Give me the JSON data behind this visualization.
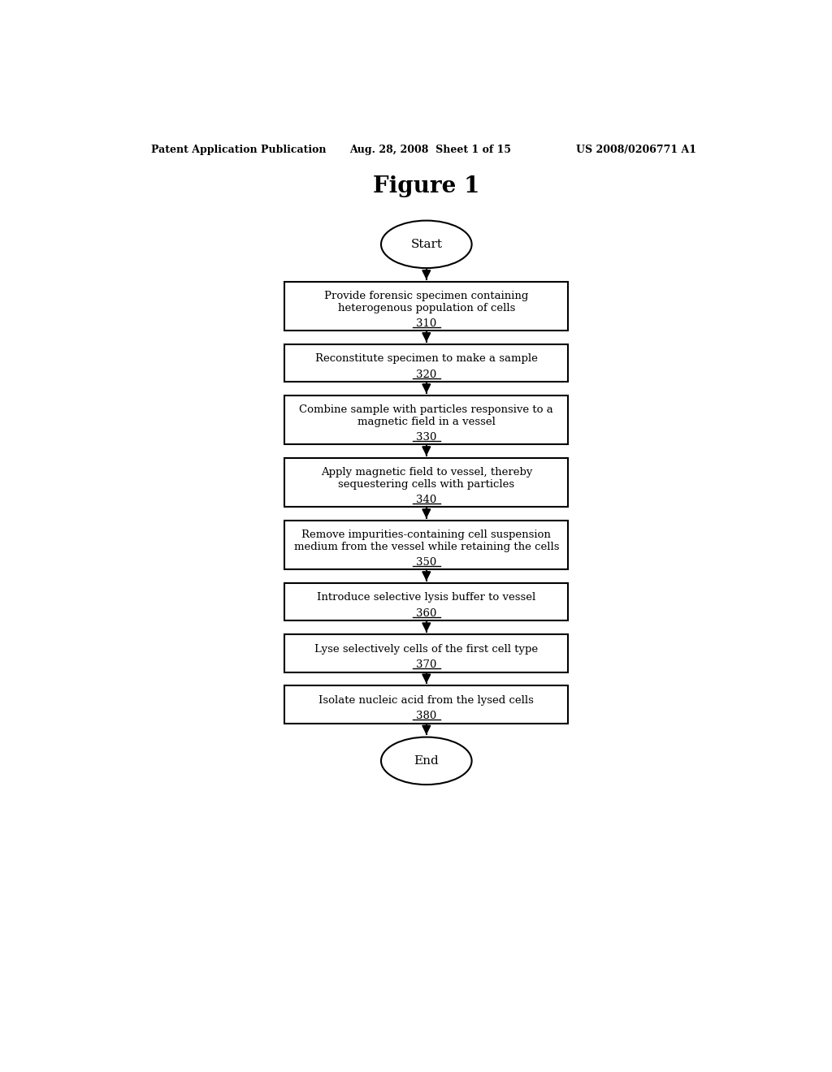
{
  "title": "Figure 1",
  "header_left": "Patent Application Publication",
  "header_mid": "Aug. 28, 2008  Sheet 1 of 15",
  "header_right": "US 2008/0206771 A1",
  "background_color": "#ffffff",
  "boxes": [
    {
      "text": "Provide forensic specimen containing\nheterogenous population of cells",
      "number": "310",
      "lines": 3
    },
    {
      "text": "Reconstitute specimen to make a sample",
      "number": "320",
      "lines": 2
    },
    {
      "text": "Combine sample with particles responsive to a\nmagnetic field in a vessel",
      "number": "330",
      "lines": 3
    },
    {
      "text": "Apply magnetic field to vessel, thereby\nsequestering cells with particles",
      "number": "340",
      "lines": 3
    },
    {
      "text": "Remove impurities-containing cell suspension\nmedium from the vessel while retaining the cells",
      "number": "350",
      "lines": 3
    },
    {
      "text": "Introduce selective lysis buffer to vessel",
      "number": "360",
      "lines": 2
    },
    {
      "text": "Lyse selectively cells of the first cell type",
      "number": "370",
      "lines": 2
    },
    {
      "text": "Isolate nucleic acid from the lysed cells",
      "number": "380",
      "lines": 2
    }
  ],
  "start_label": "Start",
  "end_label": "End",
  "box_color": "#ffffff",
  "box_edge_color": "#000000",
  "arrow_color": "#000000",
  "text_color": "#000000",
  "font_family": "serif"
}
